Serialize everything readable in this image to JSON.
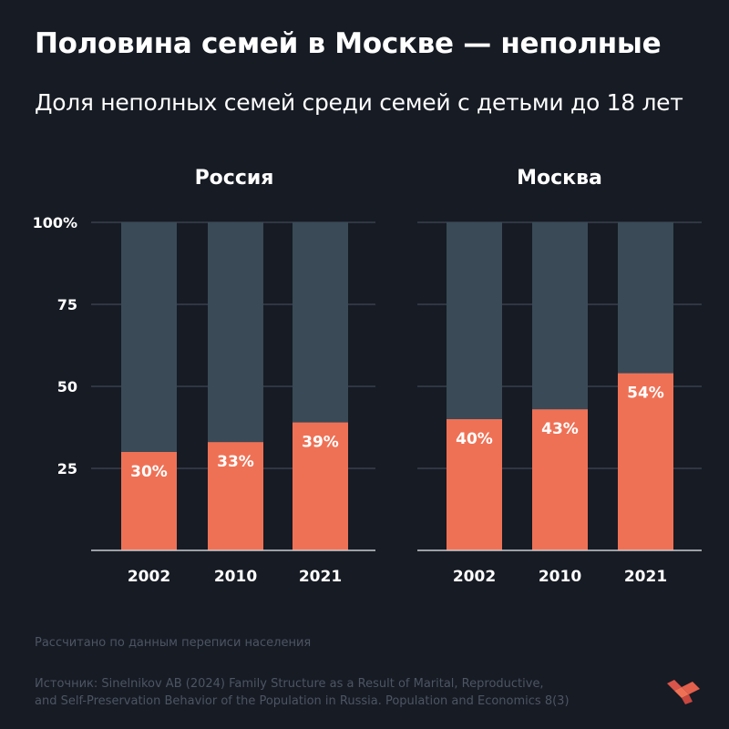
{
  "title": "Половина семей в Москве — неполные",
  "subtitle": "Доля неполных семей среди семей с детьми до 18 лет",
  "note": "Рассчитано по данным переписи населения",
  "source_lines": [
    "Источник: Sinelnikov AB (2024) Family Structure as a Result of Marital, Reproductive,",
    "and Self-Preservation Behavior of the Population in Russia. Population and Economics 8(3)"
  ],
  "colors": {
    "background": "#161b24",
    "bar_total": "#3a4a57",
    "bar_share": "#ef7155",
    "grid": "#4a5160",
    "text": "#ffffff",
    "muted": "#4e5563"
  },
  "logo_icon": "brand-logo-icon",
  "chart_data": [
    {
      "type": "bar",
      "stacked": true,
      "title": "Россия",
      "categories": [
        "2002",
        "2010",
        "2021"
      ],
      "values": [
        30,
        33,
        39
      ],
      "data_labels": [
        "30%",
        "33%",
        "39%"
      ],
      "total": 100,
      "ylim": [
        0,
        100
      ],
      "yticks": [
        25,
        50,
        75,
        100
      ],
      "ytick_labels": [
        "25",
        "50",
        "75",
        "100%"
      ],
      "grid": true
    },
    {
      "type": "bar",
      "stacked": true,
      "title": "Москва",
      "categories": [
        "2002",
        "2010",
        "2021"
      ],
      "values": [
        40,
        43,
        54
      ],
      "data_labels": [
        "40%",
        "43%",
        "54%"
      ],
      "total": 100,
      "ylim": [
        0,
        100
      ],
      "yticks": [
        25,
        50,
        75,
        100
      ],
      "ytick_labels": [],
      "grid": true
    }
  ]
}
